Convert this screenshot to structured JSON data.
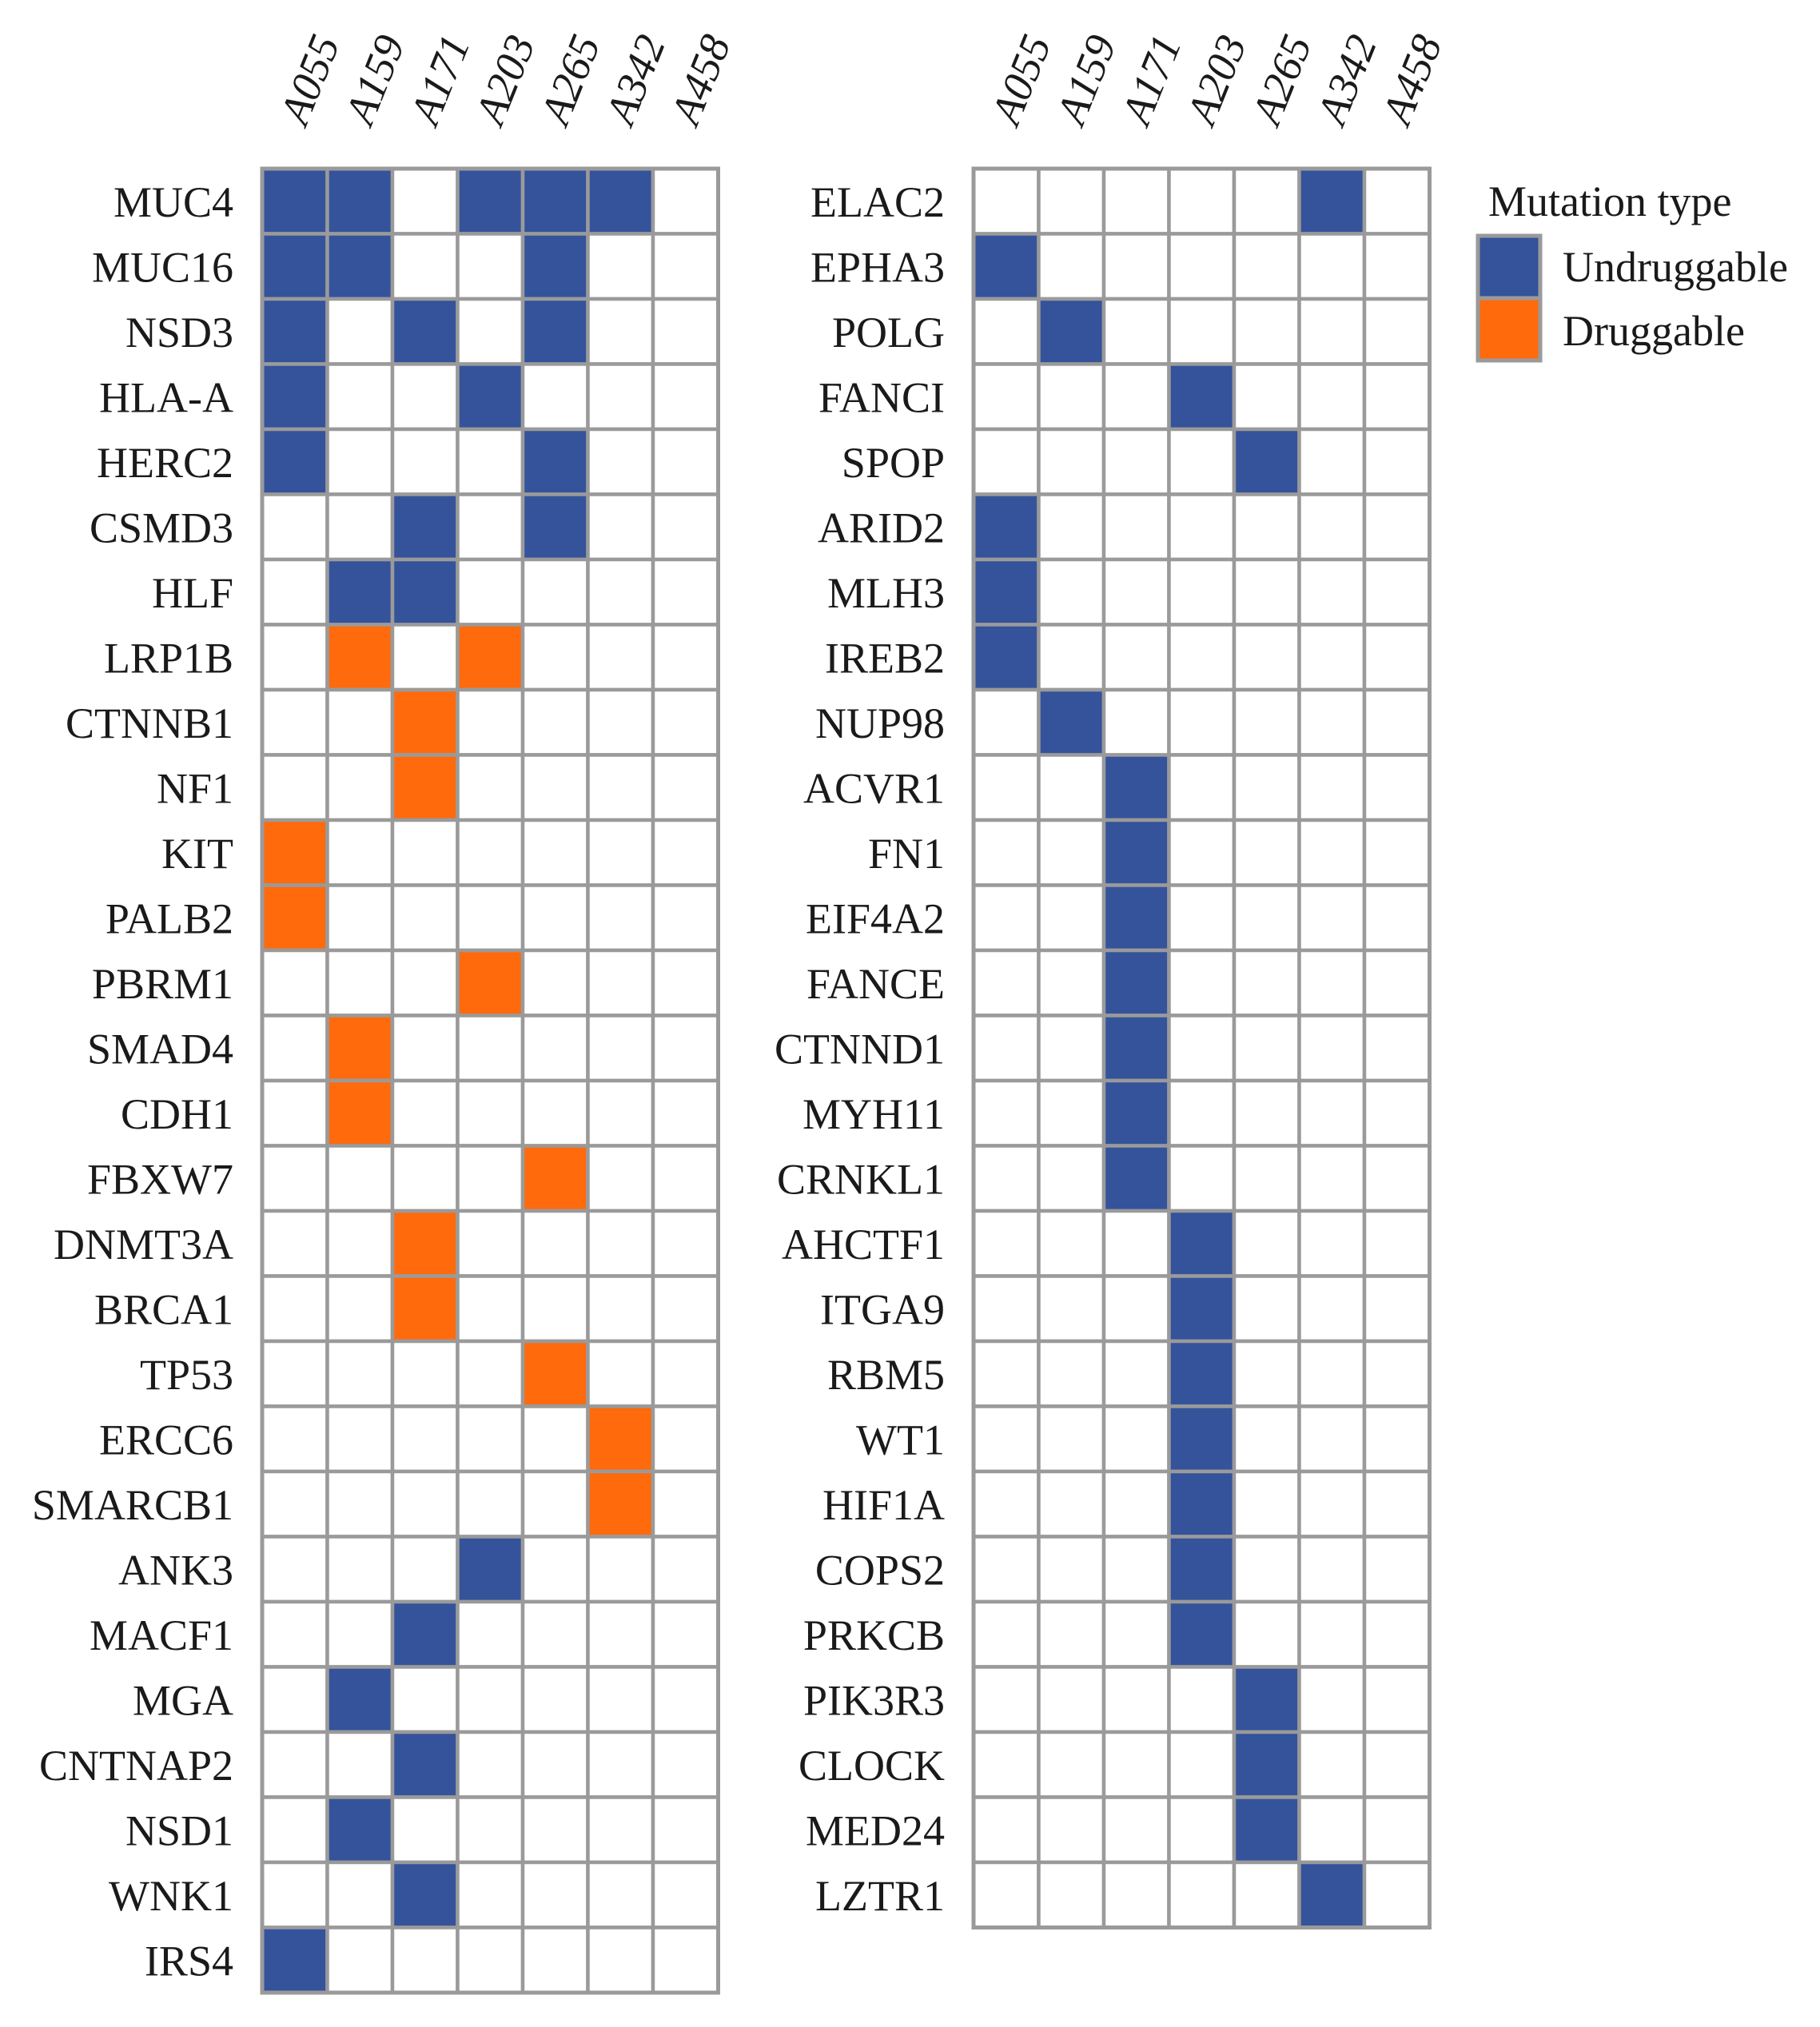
{
  "chart_data": [
    {
      "type": "heatmap",
      "samples": [
        "A055",
        "A159",
        "A171",
        "A203",
        "A265",
        "A342",
        "A458"
      ],
      "genes": [
        "MUC4",
        "MUC16",
        "NSD3",
        "HLA-A",
        "HERC2",
        "CSMD3",
        "HLF",
        "LRP1B",
        "CTNNB1",
        "NF1",
        "KIT",
        "PALB2",
        "PBRM1",
        "SMAD4",
        "CDH1",
        "FBXW7",
        "DNMT3A",
        "BRCA1",
        "TP53",
        "ERCC6",
        "SMARCB1",
        "ANK3",
        "MACF1",
        "MGA",
        "CNTNAP2",
        "NSD1",
        "WNK1",
        "IRS4"
      ],
      "values": [
        [
          "U",
          "U",
          "",
          "U",
          "U",
          "U",
          ""
        ],
        [
          "U",
          "U",
          "",
          "",
          "U",
          "",
          ""
        ],
        [
          "U",
          "",
          "U",
          "",
          "U",
          "",
          ""
        ],
        [
          "U",
          "",
          "",
          "U",
          "",
          "",
          ""
        ],
        [
          "U",
          "",
          "",
          "",
          "U",
          "",
          ""
        ],
        [
          "",
          "",
          "U",
          "",
          "U",
          "",
          ""
        ],
        [
          "",
          "U",
          "U",
          "",
          "",
          "",
          ""
        ],
        [
          "",
          "D",
          "",
          "D",
          "",
          "",
          ""
        ],
        [
          "",
          "",
          "D",
          "",
          "",
          "",
          ""
        ],
        [
          "",
          "",
          "D",
          "",
          "",
          "",
          ""
        ],
        [
          "D",
          "",
          "",
          "",
          "",
          "",
          ""
        ],
        [
          "D",
          "",
          "",
          "",
          "",
          "",
          ""
        ],
        [
          "",
          "",
          "",
          "D",
          "",
          "",
          ""
        ],
        [
          "",
          "D",
          "",
          "",
          "",
          "",
          ""
        ],
        [
          "",
          "D",
          "",
          "",
          "",
          "",
          ""
        ],
        [
          "",
          "",
          "",
          "",
          "D",
          "",
          ""
        ],
        [
          "",
          "",
          "D",
          "",
          "",
          "",
          ""
        ],
        [
          "",
          "",
          "D",
          "",
          "",
          "",
          ""
        ],
        [
          "",
          "",
          "",
          "",
          "D",
          "",
          ""
        ],
        [
          "",
          "",
          "",
          "",
          "",
          "D",
          ""
        ],
        [
          "",
          "",
          "",
          "",
          "",
          "D",
          ""
        ],
        [
          "",
          "",
          "",
          "U",
          "",
          "",
          ""
        ],
        [
          "",
          "",
          "U",
          "",
          "",
          "",
          ""
        ],
        [
          "",
          "U",
          "",
          "",
          "",
          "",
          ""
        ],
        [
          "",
          "",
          "U",
          "",
          "",
          "",
          ""
        ],
        [
          "",
          "U",
          "",
          "",
          "",
          "",
          ""
        ],
        [
          "",
          "",
          "U",
          "",
          "",
          "",
          ""
        ],
        [
          "U",
          "",
          "",
          "",
          "",
          "",
          ""
        ]
      ]
    },
    {
      "type": "heatmap",
      "samples": [
        "A055",
        "A159",
        "A171",
        "A203",
        "A265",
        "A342",
        "A458"
      ],
      "genes": [
        "ELAC2",
        "EPHA3",
        "POLG",
        "FANCI",
        "SPOP",
        "ARID2",
        "MLH3",
        "IREB2",
        "NUP98",
        "ACVR1",
        "FN1",
        "EIF4A2",
        "FANCE",
        "CTNND1",
        "MYH11",
        "CRNKL1",
        "AHCTF1",
        "ITGA9",
        "RBM5",
        "WT1",
        "HIF1A",
        "COPS2",
        "PRKCB",
        "PIK3R3",
        "CLOCK",
        "MED24",
        "LZTR1"
      ],
      "values": [
        [
          "",
          "",
          "",
          "",
          "",
          "U",
          ""
        ],
        [
          "U",
          "",
          "",
          "",
          "",
          "",
          ""
        ],
        [
          "",
          "U",
          "",
          "",
          "",
          "",
          ""
        ],
        [
          "",
          "",
          "",
          "U",
          "",
          "",
          ""
        ],
        [
          "",
          "",
          "",
          "",
          "U",
          "",
          ""
        ],
        [
          "U",
          "",
          "",
          "",
          "",
          "",
          ""
        ],
        [
          "U",
          "",
          "",
          "",
          "",
          "",
          ""
        ],
        [
          "U",
          "",
          "",
          "",
          "",
          "",
          ""
        ],
        [
          "",
          "U",
          "",
          "",
          "",
          "",
          ""
        ],
        [
          "",
          "",
          "U",
          "",
          "",
          "",
          ""
        ],
        [
          "",
          "",
          "U",
          "",
          "",
          "",
          ""
        ],
        [
          "",
          "",
          "U",
          "",
          "",
          "",
          ""
        ],
        [
          "",
          "",
          "U",
          "",
          "",
          "",
          ""
        ],
        [
          "",
          "",
          "U",
          "",
          "",
          "",
          ""
        ],
        [
          "",
          "",
          "U",
          "",
          "",
          "",
          ""
        ],
        [
          "",
          "",
          "U",
          "",
          "",
          "",
          ""
        ],
        [
          "",
          "",
          "",
          "U",
          "",
          "",
          ""
        ],
        [
          "",
          "",
          "",
          "U",
          "",
          "",
          ""
        ],
        [
          "",
          "",
          "",
          "U",
          "",
          "",
          ""
        ],
        [
          "",
          "",
          "",
          "U",
          "",
          "",
          ""
        ],
        [
          "",
          "",
          "",
          "U",
          "",
          "",
          ""
        ],
        [
          "",
          "",
          "",
          "U",
          "",
          "",
          ""
        ],
        [
          "",
          "",
          "",
          "U",
          "",
          "",
          ""
        ],
        [
          "",
          "",
          "",
          "",
          "U",
          "",
          ""
        ],
        [
          "",
          "",
          "",
          "",
          "U",
          "",
          ""
        ],
        [
          "",
          "",
          "",
          "",
          "U",
          "",
          ""
        ],
        [
          "",
          "",
          "",
          "",
          "",
          "U",
          ""
        ]
      ]
    }
  ],
  "legend": {
    "title": "Mutation type",
    "items": [
      {
        "key": "U",
        "label": "Undruggable",
        "color": "#34539b"
      },
      {
        "key": "D",
        "label": "Druggable",
        "color": "#ff6a0d"
      }
    ]
  },
  "colors": {
    "empty": "#ffffff",
    "grid": "#9a9a9a"
  }
}
